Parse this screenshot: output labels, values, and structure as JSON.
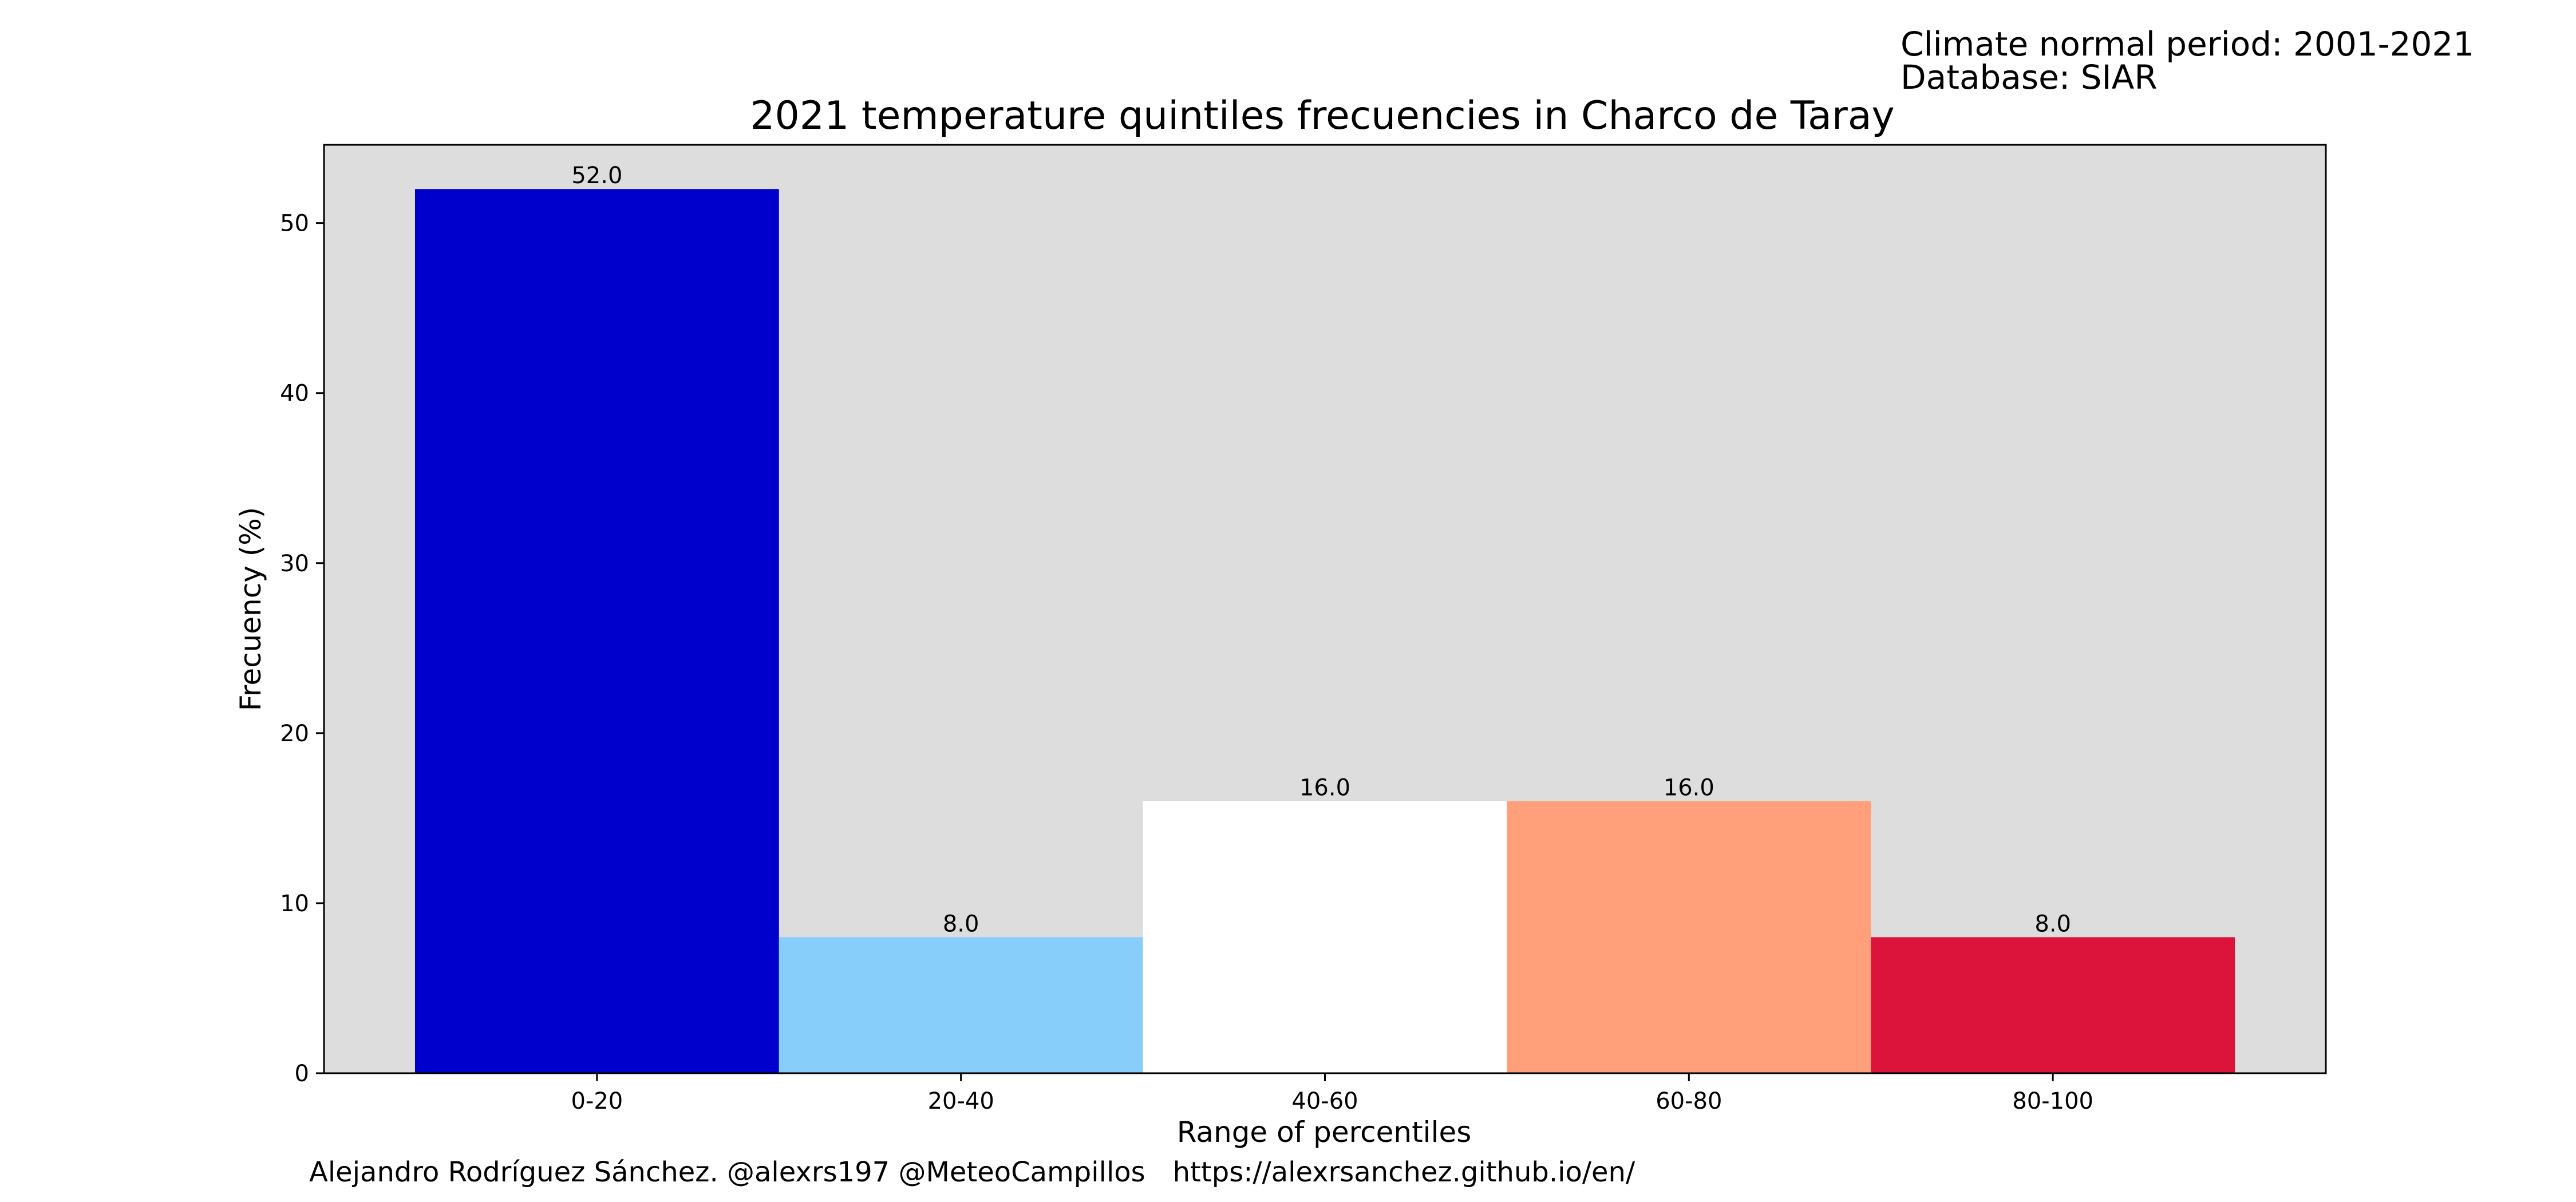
{
  "header": {
    "climate_period": "Climate normal period: 2001-2021",
    "database": "Database: SIAR"
  },
  "footer": {
    "author": "Alejandro Rodríguez Sánchez. @alexrs197 @MeteoCampillos",
    "url": "https://alexrsanchez.github.io/en/"
  },
  "chart_data": {
    "type": "bar",
    "title": "2021 temperature quintiles frecuencies in Charco de Taray",
    "xlabel": "Range of percentiles",
    "ylabel": "Frecuency (%)",
    "categories": [
      "0-20",
      "20-40",
      "40-60",
      "60-80",
      "80-100"
    ],
    "values": [
      52.0,
      8.0,
      16.0,
      16.0,
      8.0
    ],
    "value_labels": [
      "52.0",
      "8.0",
      "16.0",
      "16.0",
      "8.0"
    ],
    "bar_colors": [
      "#0000CD",
      "#87CEFA",
      "#FFFFFF",
      "#FFA07A",
      "#DC143C"
    ],
    "ylim": [
      0,
      54.6
    ],
    "yticks": [
      0,
      10,
      20,
      30,
      40,
      50
    ],
    "plot_background": "#DDDDDD",
    "grid": false,
    "legend": "none"
  }
}
